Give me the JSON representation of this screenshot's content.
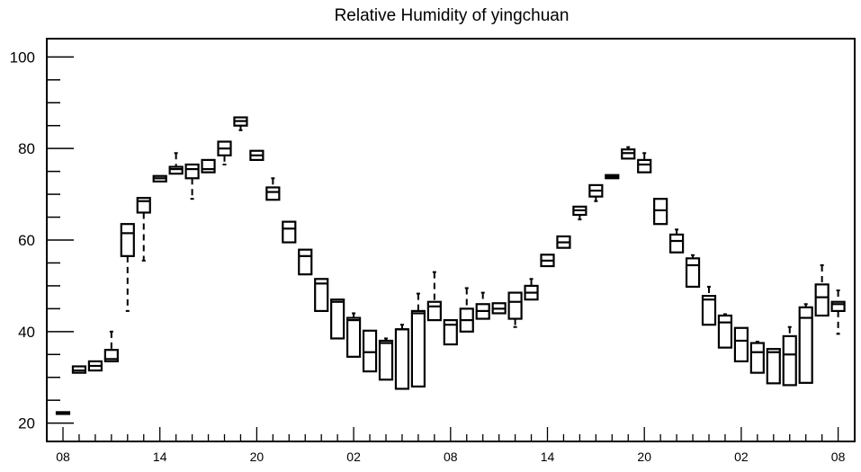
{
  "chart_data": {
    "type": "boxplot",
    "title": "Relative Humidity of yingchuan",
    "ylim": [
      16,
      104
    ],
    "yticks": [
      20,
      40,
      60,
      80,
      100
    ],
    "xticks": [
      {
        "i": 0,
        "label": "08"
      },
      {
        "i": 6,
        "label": "14"
      },
      {
        "i": 12,
        "label": "20"
      },
      {
        "i": 18,
        "label": "02"
      },
      {
        "i": 24,
        "label": "08"
      },
      {
        "i": 30,
        "label": "14"
      },
      {
        "i": 36,
        "label": "20"
      },
      {
        "i": 42,
        "label": "02"
      },
      {
        "i": 48,
        "label": "08"
      }
    ],
    "boxes": [
      {
        "i": 0,
        "min": 22.0,
        "q1": 22.0,
        "median": 22.2,
        "q3": 22.4,
        "max": 22.4
      },
      {
        "i": 1,
        "min": 31.0,
        "q1": 31.0,
        "median": 31.5,
        "q3": 32.4,
        "max": 32.4
      },
      {
        "i": 2,
        "min": 31.5,
        "q1": 31.5,
        "median": 32.5,
        "q3": 33.5,
        "max": 33.5
      },
      {
        "i": 3,
        "min": 33.5,
        "q1": 33.5,
        "median": 34.0,
        "q3": 36.0,
        "max": 40.0
      },
      {
        "i": 4,
        "min": 44.5,
        "q1": 56.5,
        "median": 61.5,
        "q3": 63.5,
        "max": 63.5
      },
      {
        "i": 5,
        "min": 55.5,
        "q1": 66.0,
        "median": 68.5,
        "q3": 69.2,
        "max": 69.2
      },
      {
        "i": 6,
        "min": 72.8,
        "q1": 72.8,
        "median": 73.5,
        "q3": 74.0,
        "max": 74.0
      },
      {
        "i": 7,
        "min": 74.5,
        "q1": 74.5,
        "median": 75.5,
        "q3": 76.0,
        "max": 79.0
      },
      {
        "i": 8,
        "min": 69.0,
        "q1": 73.5,
        "median": 75.5,
        "q3": 76.5,
        "max": 76.5
      },
      {
        "i": 9,
        "min": 74.8,
        "q1": 74.8,
        "median": 75.5,
        "q3": 77.5,
        "max": 77.5
      },
      {
        "i": 10,
        "min": 76.5,
        "q1": 78.5,
        "median": 80.0,
        "q3": 81.5,
        "max": 81.5
      },
      {
        "i": 11,
        "min": 84.0,
        "q1": 85.0,
        "median": 86.0,
        "q3": 86.8,
        "max": 86.8
      },
      {
        "i": 12,
        "min": 77.5,
        "q1": 77.5,
        "median": 78.5,
        "q3": 79.5,
        "max": 79.5
      },
      {
        "i": 13,
        "min": 68.8,
        "q1": 68.8,
        "median": 70.5,
        "q3": 71.5,
        "max": 73.5
      },
      {
        "i": 14,
        "min": 59.5,
        "q1": 59.5,
        "median": 62.5,
        "q3": 64.0,
        "max": 64.0
      },
      {
        "i": 15,
        "min": 52.5,
        "q1": 52.5,
        "median": 56.5,
        "q3": 57.9,
        "max": 57.9
      },
      {
        "i": 16,
        "min": 44.5,
        "q1": 44.5,
        "median": 50.5,
        "q3": 51.5,
        "max": 51.5
      },
      {
        "i": 17,
        "min": 38.5,
        "q1": 38.5,
        "median": 46.5,
        "q3": 47.0,
        "max": 47.0
      },
      {
        "i": 18,
        "min": 34.5,
        "q1": 34.5,
        "median": 42.5,
        "q3": 43.0,
        "max": 44.0
      },
      {
        "i": 19,
        "min": 31.3,
        "q1": 31.3,
        "median": 35.5,
        "q3": 40.2,
        "max": 40.2
      },
      {
        "i": 20,
        "min": 29.5,
        "q1": 29.5,
        "median": 37.5,
        "q3": 38.0,
        "max": 38.5
      },
      {
        "i": 21,
        "min": 27.5,
        "q1": 27.5,
        "median": 40.5,
        "q3": 40.5,
        "max": 41.5
      },
      {
        "i": 22,
        "min": 28.0,
        "q1": 28.0,
        "median": 44.0,
        "q3": 44.5,
        "max": 48.3
      },
      {
        "i": 23,
        "min": 42.5,
        "q1": 42.5,
        "median": 45.5,
        "q3": 46.5,
        "max": 53.0
      },
      {
        "i": 24,
        "min": 37.2,
        "q1": 37.2,
        "median": 41.5,
        "q3": 42.5,
        "max": 42.5
      },
      {
        "i": 25,
        "min": 40.0,
        "q1": 40.0,
        "median": 42.5,
        "q3": 45.0,
        "max": 49.5
      },
      {
        "i": 26,
        "min": 42.8,
        "q1": 42.8,
        "median": 44.5,
        "q3": 46.0,
        "max": 48.5
      },
      {
        "i": 27,
        "min": 44.0,
        "q1": 44.0,
        "median": 45.0,
        "q3": 46.2,
        "max": 46.2
      },
      {
        "i": 28,
        "min": 41.0,
        "q1": 42.8,
        "median": 46.5,
        "q3": 48.5,
        "max": 48.5
      },
      {
        "i": 29,
        "min": 47.0,
        "q1": 47.0,
        "median": 48.5,
        "q3": 50.0,
        "max": 51.5
      },
      {
        "i": 30,
        "min": 54.3,
        "q1": 54.3,
        "median": 55.5,
        "q3": 56.8,
        "max": 56.8
      },
      {
        "i": 31,
        "min": 58.3,
        "q1": 58.3,
        "median": 59.5,
        "q3": 60.8,
        "max": 60.8
      },
      {
        "i": 32,
        "min": 64.5,
        "q1": 65.5,
        "median": 66.5,
        "q3": 67.3,
        "max": 67.3
      },
      {
        "i": 33,
        "min": 68.5,
        "q1": 69.5,
        "median": 70.8,
        "q3": 72.0,
        "max": 72.0
      },
      {
        "i": 34,
        "min": 73.5,
        "q1": 73.5,
        "median": 73.8,
        "q3": 74.2,
        "max": 74.2
      },
      {
        "i": 35,
        "min": 77.8,
        "q1": 77.8,
        "median": 79.0,
        "q3": 79.8,
        "max": 80.3
      },
      {
        "i": 36,
        "min": 74.8,
        "q1": 74.8,
        "median": 76.5,
        "q3": 77.5,
        "max": 79.0
      },
      {
        "i": 37,
        "min": 63.5,
        "q1": 63.5,
        "median": 66.5,
        "q3": 69.0,
        "max": 69.0
      },
      {
        "i": 38,
        "min": 57.3,
        "q1": 57.3,
        "median": 59.8,
        "q3": 61.2,
        "max": 62.3
      },
      {
        "i": 39,
        "min": 49.8,
        "q1": 49.8,
        "median": 54.5,
        "q3": 56.0,
        "max": 56.7
      },
      {
        "i": 40,
        "min": 41.5,
        "q1": 41.5,
        "median": 47.0,
        "q3": 47.8,
        "max": 49.8
      },
      {
        "i": 41,
        "min": 36.5,
        "q1": 36.5,
        "median": 42.0,
        "q3": 43.5,
        "max": 43.8
      },
      {
        "i": 42,
        "min": 33.5,
        "q1": 33.5,
        "median": 38.0,
        "q3": 40.8,
        "max": 40.8
      },
      {
        "i": 43,
        "min": 31.0,
        "q1": 31.0,
        "median": 35.5,
        "q3": 37.5,
        "max": 37.8
      },
      {
        "i": 44,
        "min": 28.7,
        "q1": 28.7,
        "median": 35.5,
        "q3": 36.2,
        "max": 36.2
      },
      {
        "i": 45,
        "min": 28.3,
        "q1": 28.3,
        "median": 35.0,
        "q3": 39.0,
        "max": 41.0
      },
      {
        "i": 46,
        "min": 28.8,
        "q1": 28.8,
        "median": 43.0,
        "q3": 45.3,
        "max": 46.0
      },
      {
        "i": 47,
        "min": 43.5,
        "q1": 43.5,
        "median": 47.5,
        "q3": 50.3,
        "max": 54.5
      },
      {
        "i": 48,
        "min": 39.5,
        "q1": 44.5,
        "median": 46.0,
        "q3": 46.5,
        "max": 49.0
      }
    ]
  }
}
